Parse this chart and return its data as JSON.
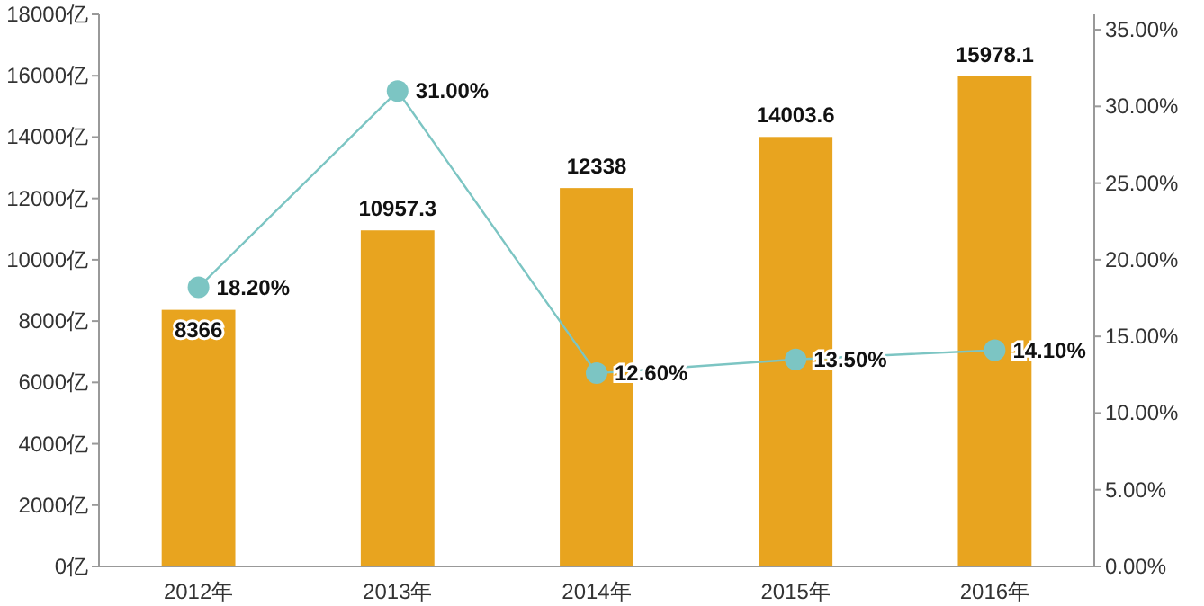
{
  "chart_data": {
    "type": "bar",
    "categories": [
      "2012年",
      "2013年",
      "2014年",
      "2015年",
      "2016年"
    ],
    "series": [
      {
        "color": "#e8a41f",
        "values": [
          8366,
          10957.3,
          12338,
          14003.6,
          15978.1
        ],
        "value_labels": [
          "8366",
          "10957.3",
          "12338",
          "14003.6",
          "15978.1"
        ]
      },
      {
        "type": "line",
        "axis": "y2",
        "color": "#7cc5c3",
        "marker": "circle",
        "values": [
          18.2,
          31.0,
          12.6,
          13.5,
          14.1
        ],
        "value_labels": [
          "18.20%",
          "31.00%",
          "12.60%",
          "13.50%",
          "14.10%"
        ]
      }
    ],
    "ylim": [
      0,
      18000
    ],
    "yticks": [
      {
        "value": 0,
        "label": "0亿"
      },
      {
        "value": 2000,
        "label": "2000亿"
      },
      {
        "value": 4000,
        "label": "4000亿"
      },
      {
        "value": 6000,
        "label": "6000亿"
      },
      {
        "value": 8000,
        "label": "8000亿"
      },
      {
        "value": 10000,
        "label": "10000亿"
      },
      {
        "value": 12000,
        "label": "12000亿"
      },
      {
        "value": 14000,
        "label": "14000亿"
      },
      {
        "value": 16000,
        "label": "16000亿"
      },
      {
        "value": 18000,
        "label": "18000亿"
      }
    ],
    "y2lim": [
      0,
      36
    ],
    "y2ticks": [
      {
        "value": 0,
        "label": "0.00%"
      },
      {
        "value": 5,
        "label": "5.00%"
      },
      {
        "value": 10,
        "label": "10.00%"
      },
      {
        "value": 15,
        "label": "15.00%"
      },
      {
        "value": 20,
        "label": "20.00%"
      },
      {
        "value": 25,
        "label": "25.00%"
      },
      {
        "value": 30,
        "label": "30.00%"
      },
      {
        "value": 35,
        "label": "35.00%"
      }
    ],
    "grid": false
  }
}
